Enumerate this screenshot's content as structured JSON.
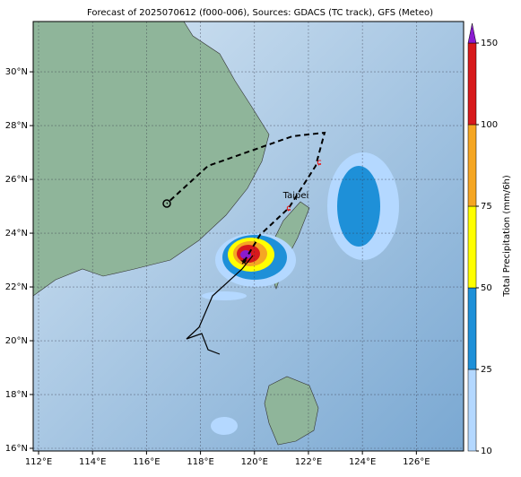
{
  "map": {
    "title": "Forecast of 2025070612 (f000-006), Sources: GDACS (TC track), GFS (Meteo)",
    "lon_ticks": [
      {
        "value": 112,
        "label": "112°E"
      },
      {
        "value": 114,
        "label": "114°E"
      },
      {
        "value": 116,
        "label": "116°E"
      },
      {
        "value": 118,
        "label": "118°E"
      },
      {
        "value": 120,
        "label": "120°E"
      },
      {
        "value": 122,
        "label": "122°E"
      },
      {
        "value": 124,
        "label": "124°E"
      },
      {
        "value": 126,
        "label": "126°E"
      }
    ],
    "lat_ticks": [
      {
        "value": 16,
        "label": "16°N"
      },
      {
        "value": 18,
        "label": "18°N"
      },
      {
        "value": 20,
        "label": "20°N"
      },
      {
        "value": 22,
        "label": "22°N"
      },
      {
        "value": 24,
        "label": "24°N"
      },
      {
        "value": 26,
        "label": "26°N"
      },
      {
        "value": 28,
        "label": "28°N"
      },
      {
        "value": 30,
        "label": "30°N"
      }
    ],
    "lonlim": [
      111.8,
      127.75
    ],
    "latlim": [
      15.9,
      31.87
    ],
    "city": "Taipei",
    "colorbar": {
      "label": "Total Precipitation (mm/6h)",
      "ticks": [
        10,
        25,
        50,
        75,
        100,
        150
      ],
      "colors": [
        "#b4d8ff",
        "#1e90d8",
        "#ffff00",
        "#f5a623",
        "#d7191c"
      ],
      "extend_color": "#8a1ccf"
    }
  }
}
